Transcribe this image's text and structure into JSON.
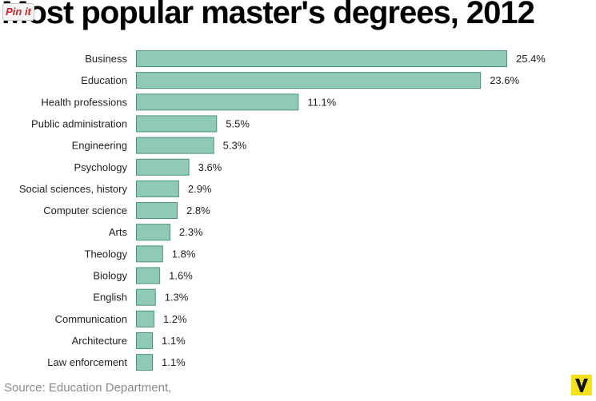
{
  "pin_button": {
    "label": "Pin it"
  },
  "colors": {
    "bar": "#8ecab5",
    "bar_stroke": "#4f8f80",
    "logo": "#f5e11a"
  },
  "chart_data": {
    "type": "bar",
    "orientation": "horizontal",
    "title": "Most popular master's degrees, 2012",
    "categories": [
      "Business",
      "Education",
      "Health professions",
      "Public administration",
      "Engineering",
      "Psychology",
      "Social sciences, history",
      "Computer science",
      "Arts",
      "Theology",
      "Biology",
      "English",
      "Communication",
      "Architecture",
      "Law enforcement"
    ],
    "values": [
      25.4,
      23.6,
      11.1,
      5.5,
      5.3,
      3.6,
      2.9,
      2.8,
      2.3,
      1.8,
      1.6,
      1.3,
      1.2,
      1.1,
      1.1
    ],
    "value_labels": [
      "25.4%",
      "23.6%",
      "11.1%",
      "5.5%",
      "5.3%",
      "3.6%",
      "2.9%",
      "2.8%",
      "2.3%",
      "1.8%",
      "1.6%",
      "1.3%",
      "1.2%",
      "1.1%",
      "1.1%"
    ],
    "xlim": [
      0,
      25.4
    ],
    "grid": false,
    "legend": false
  },
  "source": "Source: Education Department,",
  "logo": {
    "icon": "vox-v-logo"
  }
}
